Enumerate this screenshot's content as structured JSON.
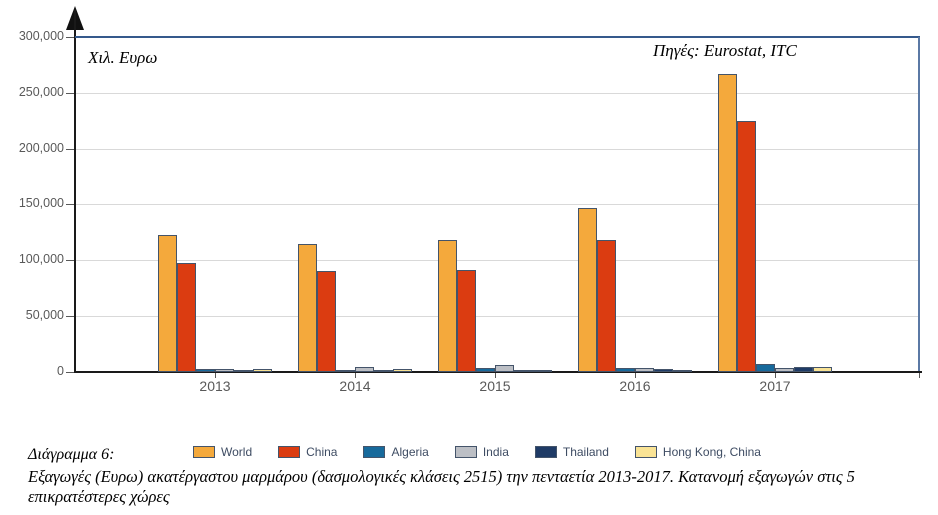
{
  "figure": {
    "y_axis_title": "Χιλ. Ευρω",
    "source_note": "Πηγές: Eurostat, ITC",
    "caption_label": "Διάγραμμα 6:",
    "caption_text": "Εξαγωγές (Ευρω) ακατέργαστου μαρμάρου (δασμολογικές κλάσεις 2515) την πενταετία 2013-2017. Κατανομή εξαγωγών στις 5 επικρατέστερες χώρες"
  },
  "colors": {
    "plot_border": "#35598C",
    "axis": "#1a1a1a",
    "gridline": "#D9D9D9",
    "tick_label": "#595959",
    "bar_outline": "#44546A",
    "legend_text": "#3E4C63"
  },
  "chart_data": {
    "type": "bar",
    "title": "",
    "xlabel": "",
    "ylabel": "Χιλ. Ευρω",
    "ylim": [
      0,
      300000
    ],
    "y_ticks": [
      0,
      50000,
      100000,
      150000,
      200000,
      250000,
      300000
    ],
    "grid": true,
    "legend_position": "bottom",
    "categories": [
      "2013",
      "2014",
      "2015",
      "2016",
      "2017"
    ],
    "series": [
      {
        "name": "World",
        "color": "#F4A93C",
        "values": [
          123000,
          115000,
          118000,
          147000,
          267000
        ]
      },
      {
        "name": "China",
        "color": "#DB3C11",
        "values": [
          98000,
          90000,
          91000,
          118000,
          225000
        ]
      },
      {
        "name": "Algeria",
        "color": "#176A9C",
        "values": [
          3000,
          2000,
          4000,
          4000,
          7000
        ]
      },
      {
        "name": "India",
        "color": "#BCBFC5",
        "values": [
          3000,
          4500,
          6000,
          4000,
          4000
        ]
      },
      {
        "name": "Thailand",
        "color": "#1F3B66",
        "values": [
          2000,
          1500,
          2000,
          2500,
          4500
        ]
      },
      {
        "name": "Hong Kong, China",
        "color": "#F9E395",
        "values": [
          3000,
          2500,
          1500,
          1000,
          4500
        ]
      }
    ]
  }
}
